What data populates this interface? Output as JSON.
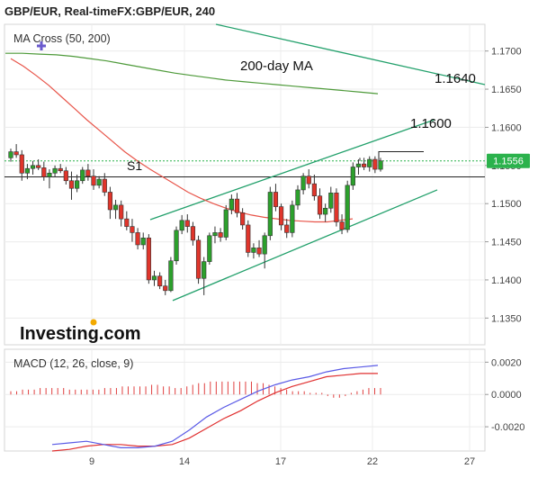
{
  "header": {
    "title": "GBP/EUR, Real-timeFX:GBP/EUR, 240"
  },
  "price_panel": {
    "indicator_label": "MA Cross (50, 200)",
    "ma200_label": "200-day MA",
    "ylim": [
      1.1315,
      1.1735
    ],
    "y_ticks": [
      "1.1700",
      "1.1650",
      "1.1600",
      "1.1550",
      "1.1500",
      "1.1450",
      "1.1400",
      "1.1350"
    ],
    "last_price": "1.1556",
    "support_label": "S1",
    "support_level": 1.1535,
    "last_price_level": 1.1556,
    "target_labels": [
      "1.1640",
      "1.1600"
    ],
    "watermark": "Investing.com"
  },
  "macd_panel": {
    "label": "MACD (12, 26, close, 9)",
    "ylim": [
      -0.0035,
      0.0028
    ],
    "y_ticks": [
      "0.0020",
      "0.0000",
      "-0.0020"
    ]
  },
  "x_axis": {
    "ticks": [
      "9",
      "14",
      "17",
      "22",
      "27"
    ]
  },
  "colors": {
    "up_candle": "#2ca02c",
    "down_candle": "#e0352b",
    "ma50": "#e8554a",
    "ma200": "#4e9a3a",
    "channel": "#22a06b",
    "macd_line": "#5a5ae6",
    "signal_line": "#e03030",
    "histogram": "#e04040",
    "last_price_tag": "#2bb24c"
  },
  "chart_data": {
    "type": "candlestick",
    "series": [
      {
        "name": "GBP/EUR",
        "ohlc": [
          [
            1.156,
            1.1572,
            1.1555,
            1.1568
          ],
          [
            1.1568,
            1.1578,
            1.156,
            1.1564
          ],
          [
            1.1564,
            1.157,
            1.153,
            1.154
          ],
          [
            1.154,
            1.1552,
            1.1532,
            1.1546
          ],
          [
            1.1546,
            1.1556,
            1.1538,
            1.155
          ],
          [
            1.155,
            1.1558,
            1.1544,
            1.1547
          ],
          [
            1.1547,
            1.1555,
            1.153,
            1.1535
          ],
          [
            1.1535,
            1.1545,
            1.152,
            1.154
          ],
          [
            1.154,
            1.155,
            1.1535,
            1.1546
          ],
          [
            1.1546,
            1.1552,
            1.154,
            1.1543
          ],
          [
            1.1543,
            1.1548,
            1.1525,
            1.153
          ],
          [
            1.153,
            1.1542,
            1.1505,
            1.152
          ],
          [
            1.152,
            1.1538,
            1.1515,
            1.153
          ],
          [
            1.153,
            1.1548,
            1.1526,
            1.1544
          ],
          [
            1.1544,
            1.1552,
            1.153,
            1.1536
          ],
          [
            1.1536,
            1.1545,
            1.1518,
            1.1524
          ],
          [
            1.1524,
            1.1536,
            1.152,
            1.1532
          ],
          [
            1.1532,
            1.154,
            1.151,
            1.1515
          ],
          [
            1.1515,
            1.1522,
            1.148,
            1.1492
          ],
          [
            1.1492,
            1.1505,
            1.148,
            1.1498
          ],
          [
            1.1498,
            1.1504,
            1.147,
            1.148
          ],
          [
            1.148,
            1.149,
            1.1465,
            1.147
          ],
          [
            1.147,
            1.148,
            1.145,
            1.1462
          ],
          [
            1.1462,
            1.1468,
            1.144,
            1.1446
          ],
          [
            1.1446,
            1.1462,
            1.144,
            1.1455
          ],
          [
            1.1455,
            1.146,
            1.1395,
            1.14
          ],
          [
            1.14,
            1.1412,
            1.1392,
            1.1405
          ],
          [
            1.1405,
            1.141,
            1.1388,
            1.1392
          ],
          [
            1.1392,
            1.14,
            1.138,
            1.1386
          ],
          [
            1.1386,
            1.143,
            1.1384,
            1.1425
          ],
          [
            1.1425,
            1.147,
            1.142,
            1.1465
          ],
          [
            1.1465,
            1.1485,
            1.146,
            1.1478
          ],
          [
            1.1478,
            1.1486,
            1.1462,
            1.147
          ],
          [
            1.147,
            1.1476,
            1.1445,
            1.1452
          ],
          [
            1.1452,
            1.1458,
            1.1395,
            1.1402
          ],
          [
            1.1402,
            1.143,
            1.138,
            1.1424
          ],
          [
            1.1424,
            1.1462,
            1.142,
            1.1458
          ],
          [
            1.1458,
            1.147,
            1.1448,
            1.1462
          ],
          [
            1.1462,
            1.1468,
            1.145,
            1.1456
          ],
          [
            1.1456,
            1.1498,
            1.1452,
            1.1492
          ],
          [
            1.1492,
            1.1512,
            1.1486,
            1.1506
          ],
          [
            1.1506,
            1.1514,
            1.1482,
            1.1488
          ],
          [
            1.1488,
            1.1494,
            1.1466,
            1.1472
          ],
          [
            1.1472,
            1.1478,
            1.143,
            1.1436
          ],
          [
            1.1436,
            1.1448,
            1.1428,
            1.1442
          ],
          [
            1.1442,
            1.1452,
            1.143,
            1.1434
          ],
          [
            1.1434,
            1.1462,
            1.1415,
            1.1458
          ],
          [
            1.1458,
            1.1522,
            1.1452,
            1.1515
          ],
          [
            1.1515,
            1.1526,
            1.149,
            1.1496
          ],
          [
            1.1496,
            1.15,
            1.1465,
            1.1472
          ],
          [
            1.1472,
            1.148,
            1.1455,
            1.1462
          ],
          [
            1.1462,
            1.1504,
            1.1456,
            1.1498
          ],
          [
            1.1498,
            1.1524,
            1.1492,
            1.1518
          ],
          [
            1.1518,
            1.154,
            1.1512,
            1.1536
          ],
          [
            1.1536,
            1.1545,
            1.152,
            1.1526
          ],
          [
            1.1526,
            1.1538,
            1.1504,
            1.151
          ],
          [
            1.151,
            1.152,
            1.148,
            1.1486
          ],
          [
            1.1486,
            1.15,
            1.1476,
            1.1494
          ],
          [
            1.1494,
            1.1522,
            1.1488,
            1.1514
          ],
          [
            1.1514,
            1.152,
            1.147,
            1.1476
          ],
          [
            1.1476,
            1.1486,
            1.146,
            1.1466
          ],
          [
            1.1466,
            1.153,
            1.1462,
            1.1524
          ],
          [
            1.1524,
            1.1554,
            1.1518,
            1.1548
          ],
          [
            1.1548,
            1.1558,
            1.1538,
            1.1552
          ],
          [
            1.1552,
            1.156,
            1.1544,
            1.1548
          ],
          [
            1.1548,
            1.1562,
            1.1542,
            1.1558
          ],
          [
            1.1558,
            1.1562,
            1.154,
            1.1545
          ],
          [
            1.1545,
            1.156,
            1.1542,
            1.1556
          ]
        ]
      },
      {
        "name": "MA 50",
        "values": [
          1.169,
          1.168,
          1.1668,
          1.1655,
          1.164,
          1.1625,
          1.161,
          1.1596,
          1.1582,
          1.1568,
          1.1556,
          1.1545,
          1.1535,
          1.1525,
          1.1515,
          1.1507,
          1.15,
          1.1494,
          1.1489,
          1.1485,
          1.1482,
          1.148,
          1.1478,
          1.1477,
          1.1476,
          1.1476,
          1.1478,
          1.148
        ]
      },
      {
        "name": "MA 200",
        "values": [
          1.1697,
          1.1697,
          1.1696,
          1.1695,
          1.1693,
          1.169,
          1.1687,
          1.1683,
          1.1679,
          1.1675,
          1.1671,
          1.1668,
          1.1665,
          1.1662,
          1.166,
          1.1658,
          1.1656,
          1.1654,
          1.1652,
          1.165,
          1.1648,
          1.1646,
          1.1644
        ]
      },
      {
        "name": "MACD",
        "values": [
          -0.0031,
          -0.003,
          -0.0029,
          -0.0031,
          -0.0033,
          -0.0033,
          -0.0032,
          -0.0029,
          -0.0022,
          -0.0014,
          -0.0008,
          -0.0003,
          0.0002,
          0.0006,
          0.0009,
          0.0011,
          0.0014,
          0.0016,
          0.0017,
          0.0018
        ]
      },
      {
        "name": "Signal",
        "values": [
          -0.0035,
          -0.0034,
          -0.0032,
          -0.0031,
          -0.0031,
          -0.0032,
          -0.0032,
          -0.0031,
          -0.0027,
          -0.0021,
          -0.0015,
          -0.001,
          -0.0004,
          0.0001,
          0.0005,
          0.0008,
          0.0011,
          0.0012,
          0.0013,
          0.0013
        ]
      },
      {
        "name": "Histogram",
        "values": [
          0.0002,
          0.0002,
          0.0003,
          0.0003,
          0.0003,
          0.0004,
          0.0004,
          0.0004,
          0.0004,
          0.0004,
          0.0003,
          0.0003,
          0.0003,
          0.0003,
          0.0003,
          0.0003,
          0.0004,
          0.0004,
          0.0004,
          0.0005,
          0.0005,
          0.0005,
          0.0005,
          0.0005,
          0.0006,
          0.0006,
          0.0005,
          0.0005,
          0.0004,
          0.0004,
          0.0005,
          0.0006,
          0.0007,
          0.0007,
          0.0008,
          0.0008,
          0.0008,
          0.0008,
          0.0008,
          0.0008,
          0.0008,
          0.0008,
          0.0007,
          0.0007,
          0.0006,
          0.0005,
          0.0004,
          0.0003,
          0.0002,
          0.0002,
          0.0002,
          0.0001,
          0.0001,
          0.0001,
          -0.0001,
          -0.0002,
          -0.0002,
          -0.0001,
          0.0001,
          0.0002,
          0.0003,
          0.0004,
          0.0004,
          0.0004
        ]
      }
    ]
  }
}
